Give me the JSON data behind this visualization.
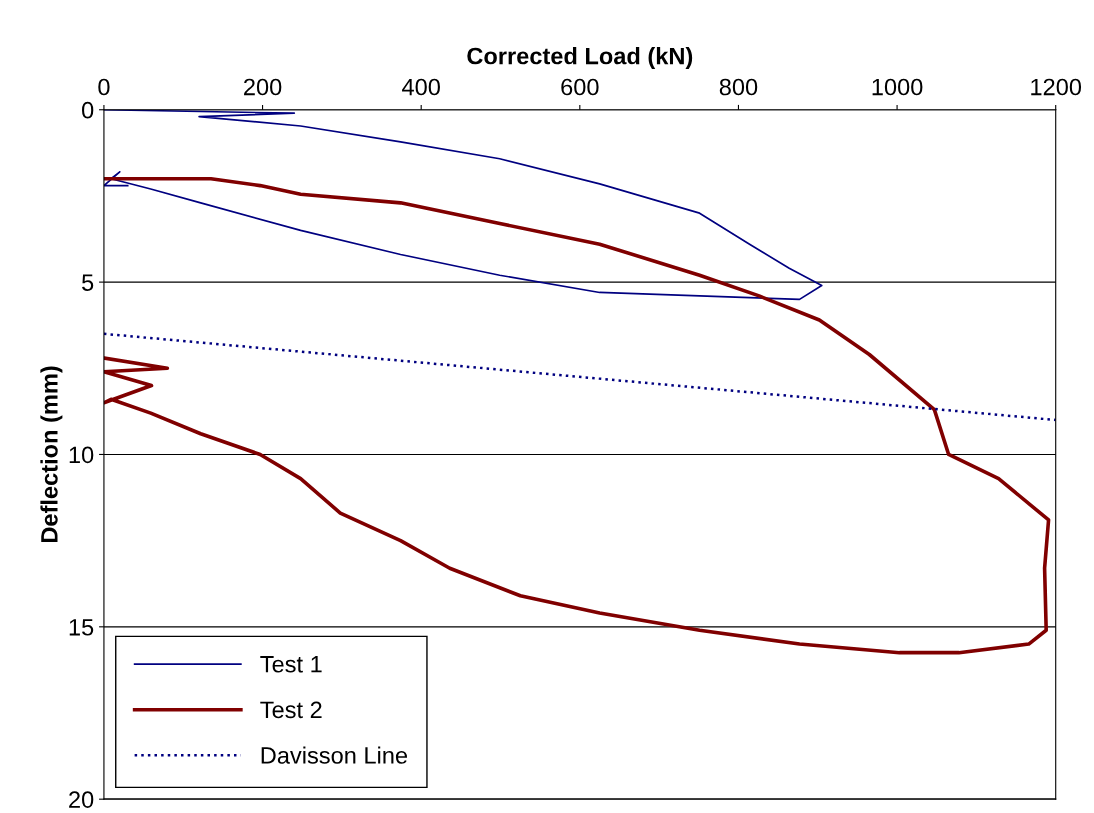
{
  "chart_data": {
    "type": "line",
    "xlabel": "Corrected Load (kN)",
    "ylabel": "Deflection (mm)",
    "xlim": [
      0,
      1200
    ],
    "xticks": [
      0,
      200,
      400,
      600,
      800,
      1000,
      1200
    ],
    "ylim": [
      20,
      0
    ],
    "yticks": [
      0,
      5,
      10,
      15,
      20
    ],
    "grid": "y",
    "legend": "bottom left",
    "series": [
      {
        "name": "Test 1",
        "color": "#000080",
        "line_style": "solid",
        "x": [
          0,
          240,
          120,
          248,
          374,
          499,
          625,
          751,
          814,
          864,
          905,
          877,
          625,
          499,
          374,
          248,
          122,
          59,
          9,
          20,
          0,
          30
        ],
        "values": [
          0,
          0.1,
          0.2,
          0.47,
          0.93,
          1.42,
          2.15,
          3.0,
          3.9,
          4.6,
          5.1,
          5.5,
          5.3,
          4.8,
          4.2,
          3.5,
          2.7,
          2.3,
          2.0,
          1.8,
          2.2,
          2.2
        ]
      },
      {
        "name": "Test 2",
        "color": "#800000",
        "line_style": "solid",
        "x": [
          0,
          135,
          197,
          248,
          374,
          499,
          625,
          751,
          826,
          902,
          965,
          1047,
          1065,
          1128,
          1191,
          1186,
          1188,
          1166,
          1078,
          1003,
          877,
          751,
          625,
          525,
          436,
          374,
          298,
          248,
          197,
          122,
          59,
          9,
          0,
          60,
          0,
          80,
          0
        ],
        "values": [
          2.0,
          2.0,
          2.2,
          2.45,
          2.7,
          3.3,
          3.9,
          4.8,
          5.4,
          6.1,
          7.1,
          8.7,
          10.0,
          10.7,
          11.9,
          13.3,
          15.1,
          15.5,
          15.75,
          15.75,
          15.5,
          15.1,
          14.6,
          14.1,
          13.3,
          12.5,
          11.7,
          10.7,
          10.0,
          9.4,
          8.8,
          8.4,
          8.5,
          8.0,
          7.6,
          7.5,
          7.2
        ]
      },
      {
        "name": "Davisson Line",
        "color": "#000080",
        "line_style": "dotted",
        "x": [
          0,
          1200
        ],
        "values": [
          6.5,
          9.0
        ]
      }
    ]
  }
}
